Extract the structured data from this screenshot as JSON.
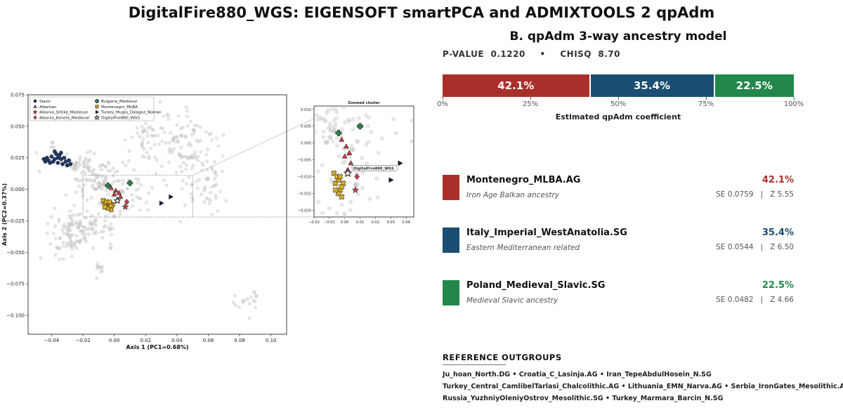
{
  "title": "DigitalFire880_WGS: EIGENSOFT smartPCA and ADMIXTOOLS 2 qpAdm",
  "chart_data": [
    {
      "type": "scatter",
      "name": "pca",
      "xlabel": "Axis 1 (PC1=0.68%)",
      "ylabel": "Axis 2 (PC2=0.37%)",
      "xlim": [
        -0.055,
        0.11
      ],
      "ylim": [
        -0.115,
        0.075
      ],
      "xticks": [
        "−0.04",
        "−0.02",
        "0.00",
        "0.02",
        "0.04",
        "0.06",
        "0.08",
        "0.10"
      ],
      "xtick_values": [
        -0.04,
        -0.02,
        0.0,
        0.02,
        0.04,
        0.06,
        0.08,
        0.1
      ],
      "yticks": [
        "0.075",
        "0.050",
        "0.025",
        "0.000",
        "−0.025",
        "−0.050",
        "−0.075",
        "−0.100"
      ],
      "ytick_values": [
        0.075,
        0.05,
        0.025,
        0.0,
        -0.025,
        -0.05,
        -0.075,
        -0.1
      ],
      "legend_position": "top-left",
      "zoom_box": {
        "x": [
          -0.02,
          0.05
        ],
        "y": [
          -0.022,
          0.011
        ]
      },
      "background_clusters": [
        {
          "x": -0.022,
          "y": 0.021,
          "sx": 0.008,
          "sy": 0.004,
          "n": 50
        },
        {
          "x": -0.012,
          "y": 0.006,
          "sx": 0.01,
          "sy": 0.007,
          "n": 70
        },
        {
          "x": -0.02,
          "y": -0.03,
          "sx": 0.01,
          "sy": 0.007,
          "n": 110
        },
        {
          "x": -0.03,
          "y": -0.045,
          "sx": 0.006,
          "sy": 0.005,
          "n": 25
        },
        {
          "x": 0.005,
          "y": -0.005,
          "sx": 0.01,
          "sy": 0.01,
          "n": 60
        },
        {
          "x": 0.02,
          "y": 0.04,
          "sx": 0.006,
          "sy": 0.012,
          "n": 40
        },
        {
          "x": 0.045,
          "y": 0.035,
          "sx": 0.012,
          "sy": 0.015,
          "n": 110
        },
        {
          "x": 0.058,
          "y": 0.0,
          "sx": 0.006,
          "sy": 0.012,
          "n": 45
        },
        {
          "x": 0.085,
          "y": -0.088,
          "sx": 0.006,
          "sy": 0.006,
          "n": 18
        },
        {
          "x": -0.01,
          "y": -0.063,
          "sx": 0.002,
          "sy": 0.004,
          "n": 10
        },
        {
          "x": -0.04,
          "y": 0.03,
          "sx": 0.006,
          "sy": 0.006,
          "n": 15
        }
      ],
      "series": [
        {
          "name": "Slavic",
          "marker": "circle",
          "color": "#1f3a6b",
          "points": [
            [
              -0.045,
              0.024
            ],
            [
              -0.043,
              0.025
            ],
            [
              -0.042,
              0.023
            ],
            [
              -0.04,
              0.026
            ],
            [
              -0.039,
              0.022
            ],
            [
              -0.038,
              0.03
            ],
            [
              -0.037,
              0.028
            ],
            [
              -0.036,
              0.021
            ],
            [
              -0.035,
              0.027
            ],
            [
              -0.034,
              0.024
            ],
            [
              -0.033,
              0.02
            ],
            [
              -0.032,
              0.025
            ],
            [
              -0.031,
              0.022
            ],
            [
              -0.03,
              0.019
            ],
            [
              -0.029,
              0.023
            ],
            [
              -0.041,
              0.021
            ],
            [
              -0.036,
              0.025
            ],
            [
              -0.034,
              0.029
            ],
            [
              -0.028,
              0.02
            ],
            [
              -0.038,
              0.024
            ],
            [
              -0.044,
              0.022
            ]
          ]
        },
        {
          "name": "Albanian",
          "marker": "triangle",
          "color": "#c0404a",
          "points": [
            [
              -0.002,
              0.001
            ],
            [
              0.001,
              -0.001
            ],
            [
              0.003,
              -0.003
            ],
            [
              0.004,
              -0.006
            ],
            [
              0.0,
              -0.004
            ],
            [
              0.002,
              -0.008
            ]
          ]
        },
        {
          "name": "Albania_Shtike_Medieval",
          "marker": "star",
          "color": "#c0404a",
          "points": [
            [
              0.007,
              -0.014
            ]
          ]
        },
        {
          "name": "Albania_Kenete_Medieval",
          "marker": "diamond",
          "color": "#c0404a",
          "points": [
            [
              0.008,
              -0.01
            ]
          ]
        },
        {
          "name": "Bulgaria_Medieval",
          "marker": "plus",
          "color": "#2e7d4a",
          "points": [
            [
              -0.004,
              0.003
            ],
            [
              0.01,
              0.005
            ]
          ]
        },
        {
          "name": "Montenegro_MLBA",
          "marker": "x",
          "color": "#e6b82a",
          "points": [
            [
              -0.007,
              -0.009
            ],
            [
              -0.006,
              -0.012
            ],
            [
              -0.004,
              -0.011
            ],
            [
              -0.003,
              -0.014
            ],
            [
              -0.005,
              -0.01
            ],
            [
              -0.002,
              -0.016
            ],
            [
              -0.004,
              -0.015
            ],
            [
              -0.001,
              -0.012
            ],
            [
              -0.006,
              -0.014
            ],
            [
              -0.003,
              -0.01
            ],
            [
              -0.002,
              -0.013
            ]
          ]
        },
        {
          "name": "Turkey_Mugla_Dalagoz_Roman",
          "marker": "tri-right",
          "color": "#1c1c3a",
          "points": [
            [
              0.03,
              -0.011
            ],
            [
              0.036,
              -0.006
            ]
          ]
        },
        {
          "name": "DigitalFire880_WGS",
          "marker": "star-open",
          "color": "#000000",
          "points": [
            [
              0.002,
              -0.009
            ]
          ]
        }
      ]
    },
    {
      "type": "scatter",
      "name": "zoom",
      "title": "Zoomed cluster",
      "xlim": [
        -0.02,
        0.045
      ],
      "ylim": [
        -0.022,
        0.011
      ],
      "xticks": [
        "−0.02",
        "−0.01",
        "0.00",
        "0.01",
        "0.02",
        "0.03",
        "0.04"
      ],
      "xtick_values": [
        -0.02,
        -0.01,
        0.0,
        0.01,
        0.02,
        0.03,
        0.04
      ],
      "yticks": [
        "0.010",
        "0.005",
        "0.000",
        "−0.005",
        "−0.010",
        "−0.015",
        "−0.020"
      ],
      "ytick_values": [
        0.01,
        0.005,
        0.0,
        -0.005,
        -0.01,
        -0.015,
        -0.02
      ],
      "annotation": {
        "text": "DigitalFire880_WGS",
        "x": 0.002,
        "y": -0.009
      }
    },
    {
      "type": "bar",
      "name": "qpadm",
      "title": "B. qpAdm 3-way ancestry model",
      "xlabel": "Estimated qpAdm coefficient",
      "xticks": [
        "0%",
        "25%",
        "50%",
        "75%",
        "100%"
      ],
      "categories": [
        "Montenegro_MLBA.AG",
        "Italy_Imperial_WestAnatolia.SG",
        "Poland_Medieval_Slavic.SG"
      ],
      "values": [
        42.1,
        35.4,
        22.5
      ],
      "labels": [
        "42.1%",
        "35.4%",
        "22.5%"
      ],
      "colors": [
        "#a9302a",
        "#1a4e72",
        "#218849"
      ]
    }
  ],
  "stats": {
    "pvalue_label": "P-VALUE",
    "pvalue": "0.1220",
    "sep": "•",
    "chisq_label": "CHISQ",
    "chisq": "8.70"
  },
  "components": [
    {
      "name": "Montenegro_MLBA.AG",
      "pct": "42.1%",
      "desc": "Iron Age Balkan ancestry",
      "se": "SE 0.0759",
      "sep": "|",
      "z": "Z 5.55",
      "color": "#a9302a"
    },
    {
      "name": "Italy_Imperial_WestAnatolia.SG",
      "pct": "35.4%",
      "desc": "Eastern Mediterranean related",
      "se": "SE 0.0544",
      "sep": "|",
      "z": "Z 6.50",
      "color": "#1a4e72"
    },
    {
      "name": "Poland_Medieval_Slavic.SG",
      "pct": "22.5%",
      "desc": "Medieval Slavic ancestry",
      "se": "SE 0.0482",
      "sep": "|",
      "z": "Z 4.66",
      "color": "#218849"
    }
  ],
  "outgroups": {
    "title": "REFERENCE OUTGROUPS",
    "lines": [
      "Ju_hoan_North.DG  •  Croatia_C_Lasinja.AG  •  Iran_TepeAbdulHosein_N.SG",
      "Turkey_Central_CamlibelTarlasi_Chalcolithic.AG  •  Lithuania_EMN_Narva.AG  •  Serbia_IronGates_Mesolithic.AG",
      "Russia_YuzhniyOleniyOstrov_Mesolithic.SG  •  Turkey_Marmara_Barcin_N.SG"
    ]
  }
}
